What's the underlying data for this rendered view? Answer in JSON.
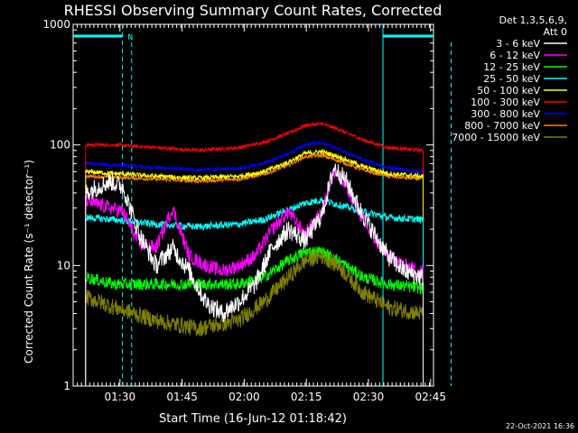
{
  "title": "RHESSI Observing Summary Count Rates, Corrected",
  "legend_header": [
    "Det 1,3,5,6,9,",
    "Att 0"
  ],
  "footer_date": "22-Oct-2021 16:36",
  "n_marker": "N",
  "chart_data": {
    "type": "line",
    "title": "RHESSI Observing Summary Count Rates, Corrected",
    "xlabel": "Start Time (16-Jun-12 01:18:42)",
    "ylabel": "Corrected Count Rate (s⁻¹ detector⁻¹)",
    "yscale": "log",
    "ylim": [
      1,
      1000
    ],
    "x_unit": "minutes after 01:18:42",
    "xlim": [
      0,
      87
    ],
    "x_ticks": [
      {
        "x": 11.3,
        "label": "01:30"
      },
      {
        "x": 26.3,
        "label": "01:45"
      },
      {
        "x": 41.3,
        "label": "02:00"
      },
      {
        "x": 56.3,
        "label": "02:15"
      },
      {
        "x": 71.3,
        "label": "02:30"
      },
      {
        "x": 86.3,
        "label": "02:45"
      }
    ],
    "y_ticks": [
      {
        "y": 1,
        "label": "1"
      },
      {
        "y": 10,
        "label": "10"
      },
      {
        "y": 100,
        "label": "100"
      },
      {
        "y": 1000,
        "label": "1000"
      }
    ],
    "legend_position": "top-right, outside plot",
    "data_start": 3.0,
    "data_end": 84.5,
    "series": [
      {
        "name": "3 - 6 keV",
        "color": "#ffffff",
        "noise": 0.08,
        "x": [
          3,
          6,
          9,
          12,
          16,
          20,
          24,
          28,
          32,
          36,
          40,
          44,
          48,
          52,
          56,
          60,
          63,
          66,
          69,
          72,
          76,
          80,
          84
        ],
        "y": [
          40,
          45,
          50,
          45,
          18,
          10,
          14,
          9,
          5,
          4,
          5,
          7,
          14,
          20,
          16,
          26,
          65,
          50,
          30,
          20,
          12,
          9,
          8
        ]
      },
      {
        "name": "6 - 12 keV",
        "color": "#ff00ff",
        "noise": 0.06,
        "x": [
          3,
          6,
          9,
          12,
          16,
          20,
          24,
          28,
          32,
          36,
          40,
          44,
          48,
          52,
          56,
          60,
          63,
          66,
          69,
          72,
          76,
          80,
          84
        ],
        "y": [
          35,
          32,
          30,
          28,
          15,
          14,
          30,
          12,
          10,
          9,
          10,
          12,
          20,
          28,
          18,
          28,
          60,
          45,
          28,
          18,
          12,
          10,
          9
        ]
      },
      {
        "name": "12 - 25 keV",
        "color": "#00ff00",
        "noise": 0.05,
        "x": [
          3,
          10,
          20,
          30,
          40,
          46,
          52,
          56,
          60,
          64,
          70,
          76,
          84
        ],
        "y": [
          8,
          7,
          7,
          7,
          7,
          8,
          11,
          13,
          13,
          11,
          8,
          7,
          6.5
        ]
      },
      {
        "name": "25 - 50 keV",
        "color": "#00ffff",
        "noise": 0.03,
        "x": [
          3,
          10,
          20,
          30,
          40,
          46,
          52,
          56,
          60,
          64,
          70,
          76,
          84
        ],
        "y": [
          25,
          24,
          22,
          21,
          22,
          24,
          29,
          33,
          35,
          32,
          28,
          25,
          24
        ]
      },
      {
        "name": "50 - 100 keV",
        "color": "#ffff00",
        "noise": 0.02,
        "x": [
          3,
          10,
          20,
          30,
          40,
          46,
          52,
          56,
          60,
          64,
          70,
          76,
          84
        ],
        "y": [
          60,
          58,
          55,
          53,
          55,
          60,
          72,
          85,
          88,
          80,
          66,
          58,
          55
        ]
      },
      {
        "name": "100 - 300 keV",
        "color": "#ff0000",
        "noise": 0.015,
        "x": [
          3,
          10,
          20,
          30,
          40,
          46,
          52,
          56,
          60,
          64,
          70,
          76,
          84
        ],
        "y": [
          100,
          100,
          95,
          90,
          95,
          105,
          125,
          145,
          150,
          135,
          110,
          95,
          90
        ]
      },
      {
        "name": "300 - 800 keV",
        "color": "#0000ff",
        "noise": 0.015,
        "x": [
          3,
          10,
          20,
          30,
          40,
          46,
          52,
          56,
          60,
          64,
          70,
          76,
          84
        ],
        "y": [
          70,
          68,
          65,
          62,
          64,
          70,
          85,
          100,
          105,
          92,
          75,
          65,
          60
        ]
      },
      {
        "name": "800 - 7000 keV",
        "color": "#ff8000",
        "noise": 0.015,
        "x": [
          3,
          10,
          20,
          30,
          40,
          46,
          52,
          56,
          60,
          64,
          70,
          76,
          84
        ],
        "y": [
          55,
          54,
          52,
          50,
          52,
          57,
          68,
          80,
          82,
          74,
          62,
          55,
          52
        ]
      },
      {
        "name": "7000 - 15000 keV",
        "color": "#808000",
        "noise": 0.07,
        "x": [
          3,
          10,
          20,
          30,
          40,
          46,
          52,
          56,
          60,
          64,
          70,
          76,
          84
        ],
        "y": [
          5.5,
          4.5,
          3.5,
          3,
          3.5,
          5,
          8,
          11,
          12,
          10,
          6,
          4.5,
          4
        ]
      }
    ],
    "annotations": {
      "night_intervals": [
        [
          0,
          11.9
        ],
        [
          74.8,
          87
        ]
      ],
      "flag_line_value": 800
    }
  }
}
